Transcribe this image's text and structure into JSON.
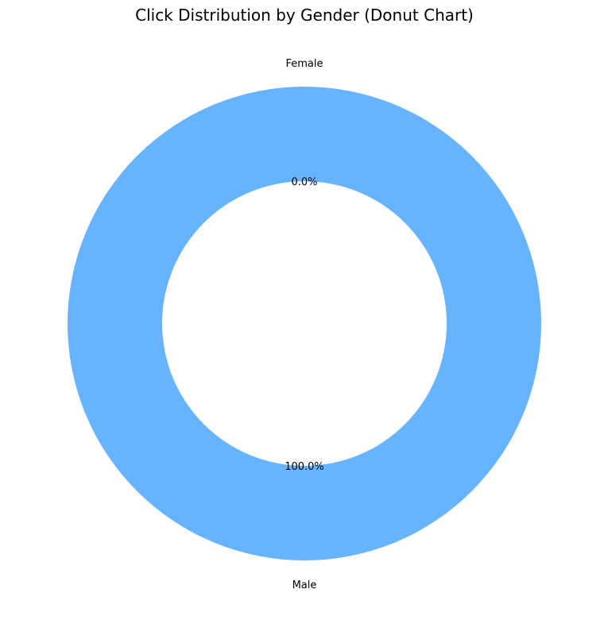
{
  "chart_data": {
    "type": "pie",
    "donut": true,
    "title": "Click Distribution by Gender (Donut Chart)",
    "start_angle_deg": 90,
    "direction": "counterclockwise",
    "slices": [
      {
        "label": "Female",
        "value": 0.0,
        "percent_label": "0.0%",
        "color": "#ff9999"
      },
      {
        "label": "Male",
        "value": 100.0,
        "percent_label": "100.0%",
        "color": "#66b3ff"
      }
    ]
  }
}
